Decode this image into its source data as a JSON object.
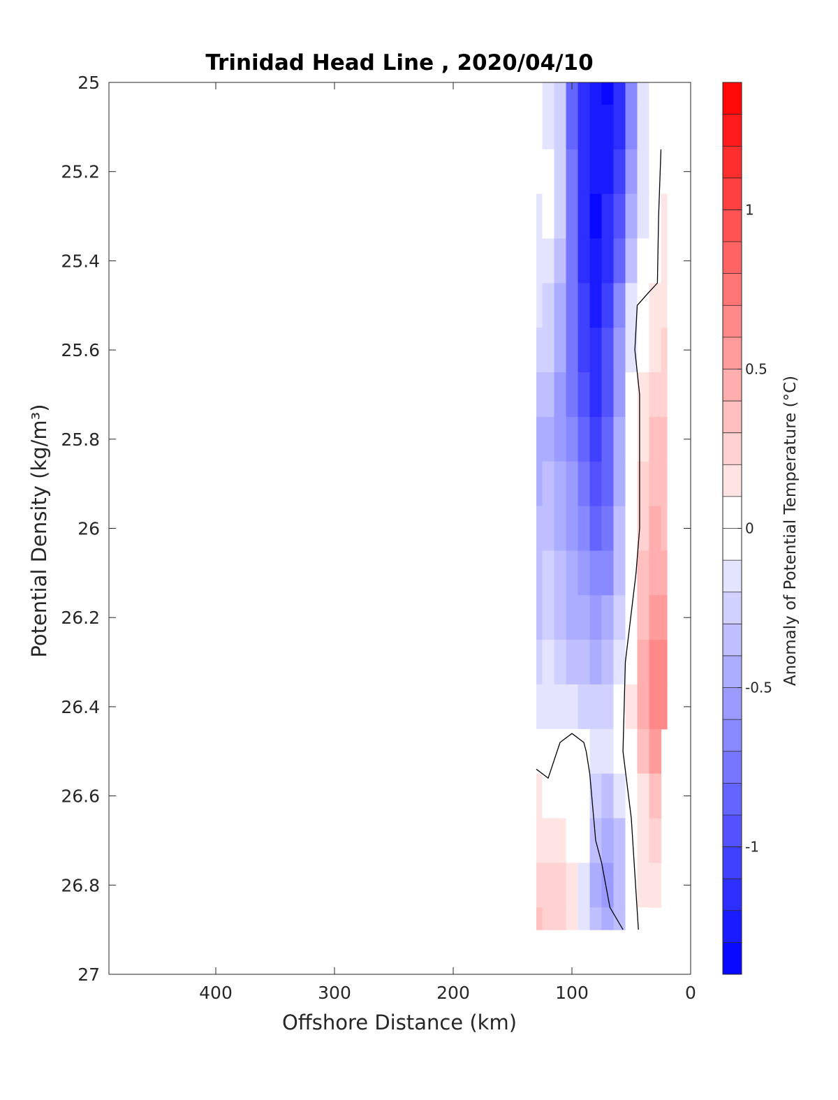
{
  "chart_data": {
    "type": "heatmap",
    "title": "Trinidad Head Line , 2020/04/10",
    "xlabel": "Offshore Distance (km)",
    "ylabel": "Potential Density (kg/m³)",
    "xlim": [
      490,
      0
    ],
    "ylim": [
      25,
      27
    ],
    "x_reversed": true,
    "y_reversed": true,
    "xticks": [
      "400",
      "300",
      "200",
      "100",
      "0"
    ],
    "yticks": [
      "25",
      "25.2",
      "25.4",
      "25.6",
      "25.8",
      "26",
      "26.2",
      "26.4",
      "26.6",
      "26.8",
      "27"
    ],
    "colorbar": {
      "label": "Anomaly of Potential Temperature (°C)",
      "range": [
        -1.4,
        1.4
      ],
      "step": 0.1,
      "ticks": [
        "-1",
        "-0.5",
        "0",
        "0.5",
        "1"
      ],
      "colormap": "blue-white-red",
      "low_color": "#0000ff",
      "high_color": "#ff0000"
    },
    "x": [
      130,
      120,
      110,
      100,
      90,
      80,
      70,
      60,
      50,
      40,
      30,
      20
    ],
    "y": [
      25.0,
      25.1,
      25.2,
      25.3,
      25.4,
      25.5,
      25.6,
      25.7,
      25.8,
      25.9,
      26.0,
      26.1,
      26.2,
      26.3,
      26.4,
      26.5,
      26.6,
      26.7,
      26.8,
      26.9
    ],
    "z": [
      [
        -0.1,
        -0.15,
        -0.3,
        -0.9,
        -1.2,
        -1.3,
        -1.35,
        -1.2,
        -0.7,
        -0.2,
        -0.05,
        null
      ],
      [
        -0.1,
        -0.12,
        -0.3,
        -0.85,
        -1.2,
        -1.3,
        -1.3,
        -1.15,
        -0.7,
        -0.2,
        -0.05,
        null
      ],
      [
        -0.1,
        -0.1,
        -0.25,
        -0.8,
        -1.2,
        -1.3,
        -1.25,
        -1.05,
        -0.6,
        -0.15,
        0.02,
        0.05
      ],
      [
        -0.12,
        -0.08,
        -0.25,
        -0.8,
        -1.2,
        -1.32,
        -1.2,
        -0.95,
        -0.5,
        -0.12,
        0.05,
        0.1
      ],
      [
        -0.15,
        -0.15,
        -0.35,
        -0.8,
        -1.15,
        -1.3,
        -1.15,
        -0.85,
        -0.4,
        -0.08,
        0.07,
        0.12
      ],
      [
        -0.2,
        -0.25,
        -0.45,
        -0.8,
        -1.1,
        -1.25,
        -1.05,
        -0.7,
        -0.2,
        0.02,
        0.1,
        0.15
      ],
      [
        -0.25,
        -0.3,
        -0.5,
        -0.75,
        -1.05,
        -1.2,
        -1.0,
        -0.6,
        -0.12,
        0.05,
        0.15,
        0.2
      ],
      [
        -0.4,
        -0.4,
        -0.55,
        -0.75,
        -1.0,
        -1.15,
        -0.95,
        -0.55,
        -0.08,
        0.1,
        0.25,
        0.25
      ],
      [
        -0.45,
        -0.45,
        -0.55,
        -0.7,
        -0.9,
        -1.05,
        -0.9,
        -0.5,
        -0.06,
        0.15,
        0.35,
        0.3
      ],
      [
        -0.45,
        -0.4,
        -0.5,
        -0.6,
        -0.8,
        -0.95,
        -0.85,
        -0.45,
        -0.05,
        0.2,
        0.35,
        0.3
      ],
      [
        -0.4,
        -0.38,
        -0.45,
        -0.55,
        -0.7,
        -0.85,
        -0.75,
        -0.4,
        -0.02,
        0.25,
        0.4,
        0.35
      ],
      [
        -0.35,
        -0.3,
        -0.4,
        -0.5,
        -0.6,
        -0.7,
        -0.65,
        -0.35,
        0.02,
        0.3,
        0.45,
        0.4
      ],
      [
        -0.35,
        -0.3,
        -0.35,
        -0.45,
        -0.5,
        -0.6,
        -0.5,
        -0.25,
        0.05,
        0.35,
        0.5,
        0.5
      ],
      [
        -0.3,
        -0.2,
        -0.3,
        -0.35,
        -0.4,
        -0.45,
        -0.4,
        -0.15,
        0.08,
        0.4,
        0.6,
        0.6
      ],
      [
        -0.2,
        -0.2,
        -0.2,
        -0.15,
        -0.25,
        -0.3,
        -0.25,
        -0.1,
        0.1,
        0.45,
        0.6,
        0.65
      ],
      [
        -0.05,
        -0.05,
        0.02,
        0.05,
        -0.02,
        -0.15,
        -0.15,
        -0.08,
        0.08,
        0.35,
        0.5,
        null
      ],
      [
        0.1,
        0.08,
        0.08,
        0.05,
        -0.05,
        -0.25,
        -0.35,
        -0.15,
        -0.02,
        0.15,
        0.3,
        null
      ],
      [
        0.15,
        0.15,
        0.15,
        0.08,
        -0.1,
        -0.4,
        -0.5,
        -0.35,
        -0.05,
        0.12,
        0.2,
        null
      ],
      [
        0.25,
        0.2,
        0.2,
        0.1,
        -0.15,
        -0.45,
        -0.55,
        -0.4,
        -0.05,
        0.1,
        0.12,
        null
      ],
      [
        0.3,
        0.25,
        0.2,
        0.1,
        -0.15,
        -0.4,
        -0.45,
        -0.35,
        -0.05,
        0.05,
        null,
        null
      ]
    ],
    "zero_contours": [
      [
        [
          130,
          26.54
        ],
        [
          120,
          26.56
        ],
        [
          110,
          26.48
        ],
        [
          100,
          26.46
        ],
        [
          90,
          26.48
        ],
        [
          88,
          26.5
        ],
        [
          85,
          26.55
        ],
        [
          80,
          26.7
        ],
        [
          75,
          26.75
        ],
        [
          68,
          26.85
        ],
        [
          57,
          26.9
        ]
      ],
      [
        [
          25,
          25.15
        ],
        [
          27,
          25.3
        ],
        [
          28,
          25.45
        ],
        [
          35,
          25.47
        ],
        [
          45,
          25.5
        ],
        [
          47,
          25.6
        ],
        [
          43,
          25.7
        ],
        [
          43,
          26.0
        ],
        [
          46,
          26.1
        ],
        [
          55,
          26.3
        ],
        [
          57,
          26.5
        ],
        [
          50,
          26.65
        ],
        [
          44,
          26.9
        ]
      ]
    ]
  }
}
